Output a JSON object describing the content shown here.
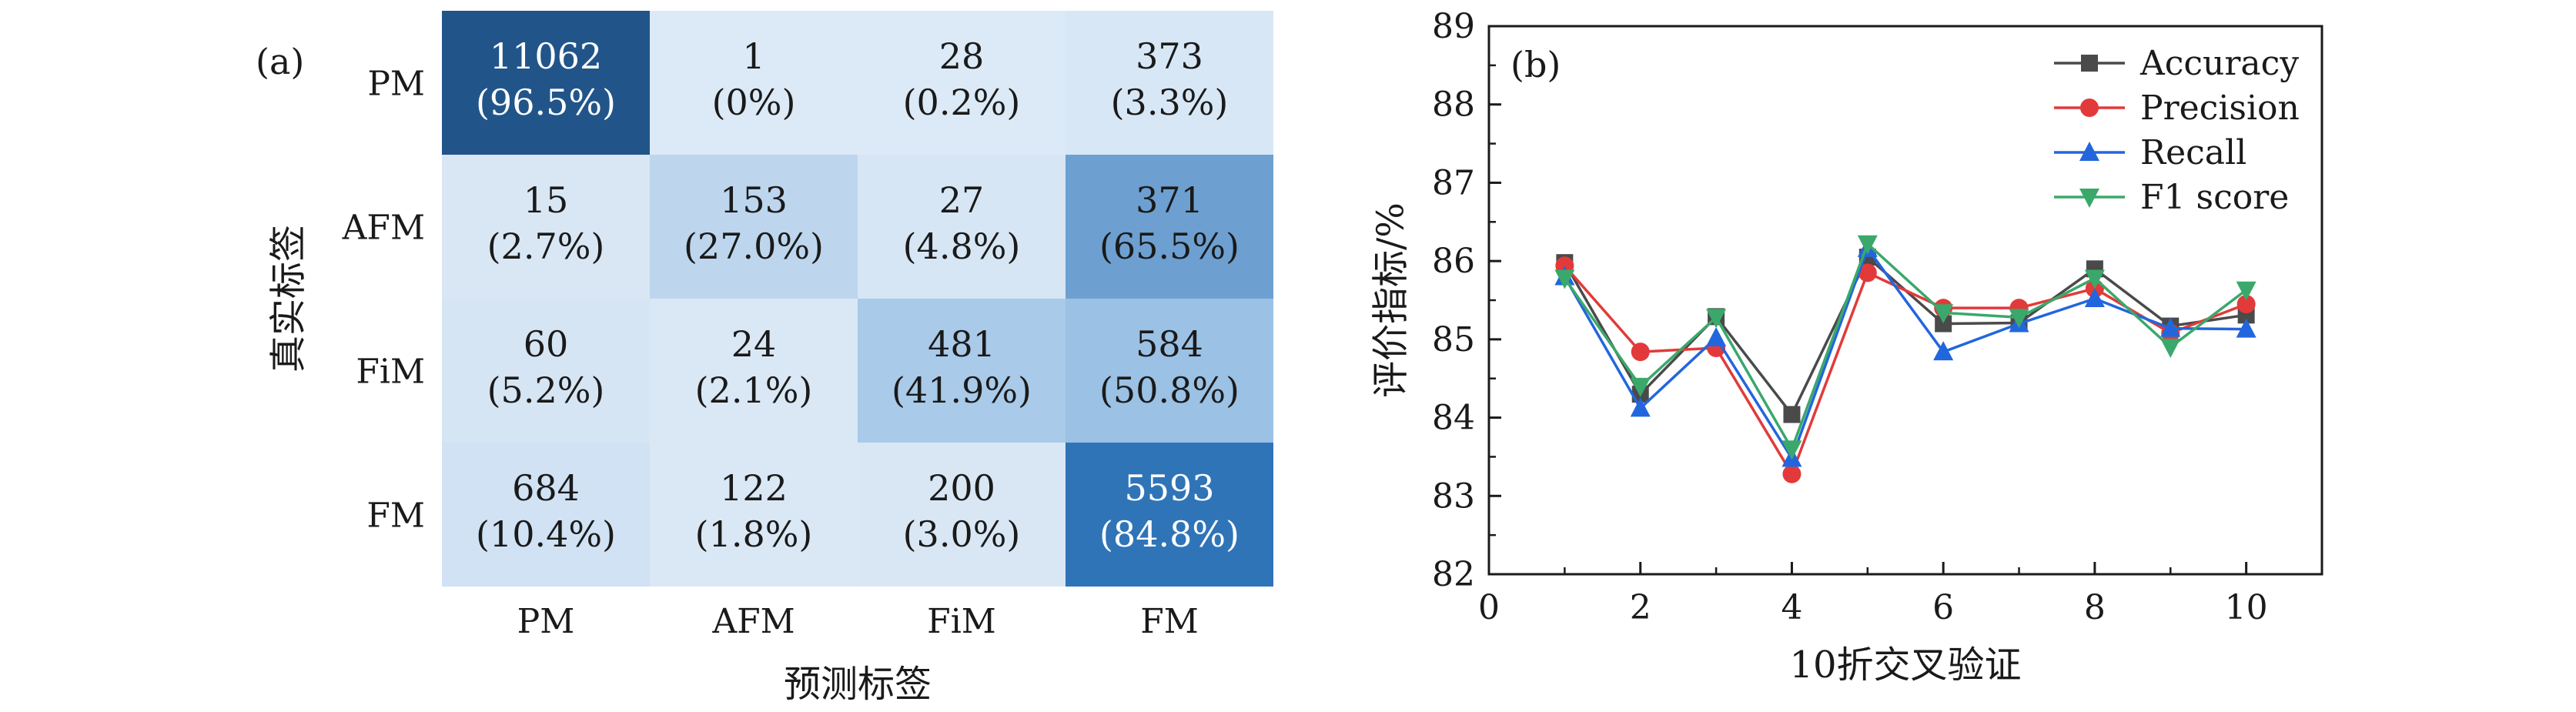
{
  "chart_data": [
    {
      "panel": "(a)",
      "type": "heatmap",
      "xlabel": "预测标签",
      "ylabel": "真实标签",
      "x_categories": [
        "PM",
        "AFM",
        "FiM",
        "FM"
      ],
      "y_categories": [
        "PM",
        "AFM",
        "FiM",
        "FM"
      ],
      "counts": [
        [
          11062,
          1,
          28,
          373
        ],
        [
          15,
          153,
          27,
          371
        ],
        [
          60,
          24,
          481,
          584
        ],
        [
          684,
          122,
          200,
          5593
        ]
      ],
      "percent_labels": [
        [
          "(96.5%)",
          "(0%)",
          "(0.2%)",
          "(3.3%)"
        ],
        [
          "(2.7%)",
          "(27.0%)",
          "(4.8%)",
          "(65.5%)"
        ],
        [
          "(5.2%)",
          "(2.1%)",
          "(41.9%)",
          "(50.8%)"
        ],
        [
          "(10.4%)",
          "(1.8%)",
          "(3.0%)",
          "(84.8%)"
        ]
      ],
      "percent_values": [
        [
          96.5,
          0,
          0.2,
          3.3
        ],
        [
          2.7,
          27.0,
          4.8,
          65.5
        ],
        [
          5.2,
          2.1,
          41.9,
          50.8
        ],
        [
          10.4,
          1.8,
          3.0,
          84.8
        ]
      ],
      "colormap": [
        "#dce9f6",
        "#c0d8ee",
        "#9ec3e5",
        "#2f74b8",
        "#1d4c7c"
      ]
    },
    {
      "panel": "(b)",
      "type": "line",
      "xlabel": "10折交叉验证",
      "ylabel": "评价指标/%",
      "xlim": [
        0,
        11
      ],
      "ylim": [
        82,
        89
      ],
      "xticks": [
        0,
        2,
        4,
        6,
        8,
        10
      ],
      "yticks": [
        82,
        83,
        84,
        85,
        86,
        87,
        88,
        89
      ],
      "x": [
        1,
        2,
        3,
        4,
        5,
        6,
        7,
        8,
        9,
        10
      ],
      "legend_position": "top-right",
      "series": [
        {
          "name": "Accuracy",
          "color": "#4a4a4a",
          "marker": "square",
          "values": [
            85.98,
            84.3,
            85.29,
            84.04,
            86.05,
            85.2,
            85.21,
            85.9,
            85.17,
            85.31
          ]
        },
        {
          "name": "Precision",
          "color": "#e23a3a",
          "marker": "circle",
          "values": [
            85.94,
            84.84,
            84.89,
            83.28,
            85.85,
            85.4,
            85.4,
            85.65,
            85.08,
            85.45
          ]
        },
        {
          "name": "Recall",
          "color": "#2266dd",
          "marker": "triangle-up",
          "values": [
            85.8,
            84.12,
            85.02,
            83.48,
            86.16,
            84.84,
            85.2,
            85.52,
            85.14,
            85.13
          ]
        },
        {
          "name": "F1 score",
          "color": "#3aa86b",
          "marker": "triangle-down",
          "values": [
            85.78,
            84.4,
            85.28,
            83.6,
            86.22,
            85.34,
            85.28,
            85.78,
            84.9,
            85.63
          ]
        }
      ]
    }
  ]
}
